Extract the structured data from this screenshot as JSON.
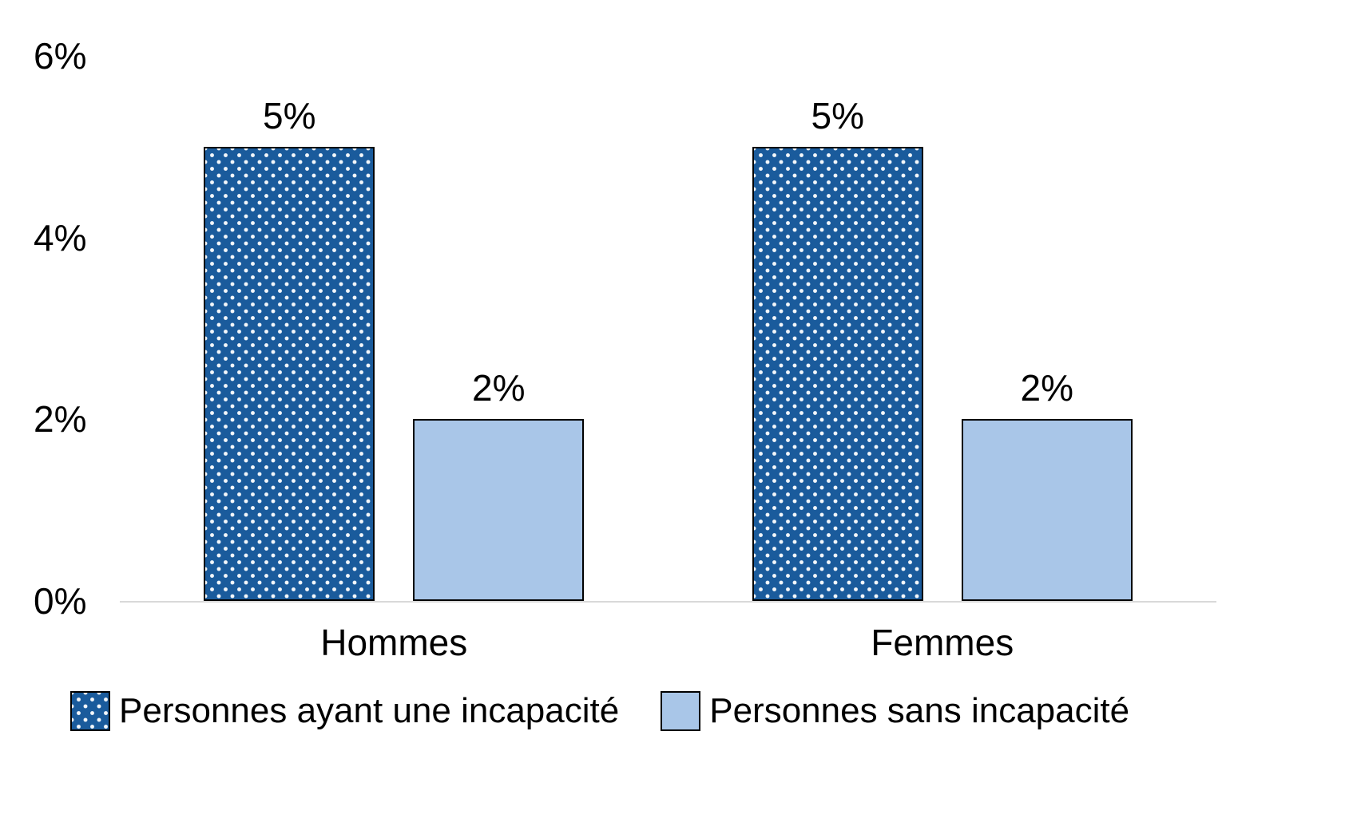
{
  "chart_data": {
    "type": "bar",
    "categories": [
      "Hommes",
      "Femmes"
    ],
    "series": [
      {
        "name": "Personnes ayant une incapacité",
        "values": [
          5,
          5
        ],
        "labels": [
          "5%",
          "5%"
        ],
        "color": "#1a5b9c",
        "pattern": "white-dots"
      },
      {
        "name": "Personnes sans incapacité",
        "values": [
          2,
          2
        ],
        "labels": [
          "2%",
          "2%"
        ],
        "color": "#a9c6e8",
        "pattern": "solid"
      }
    ],
    "title": "",
    "xlabel": "",
    "ylabel": "",
    "ylim": [
      0,
      6
    ],
    "yticks": [
      "0%",
      "2%",
      "4%",
      "6%"
    ],
    "ytick_values": [
      0,
      2,
      4,
      6
    ],
    "grid": false,
    "legend_position": "bottom",
    "background_color": "#ffffff",
    "axis_line_color": "#d9d9d9"
  }
}
